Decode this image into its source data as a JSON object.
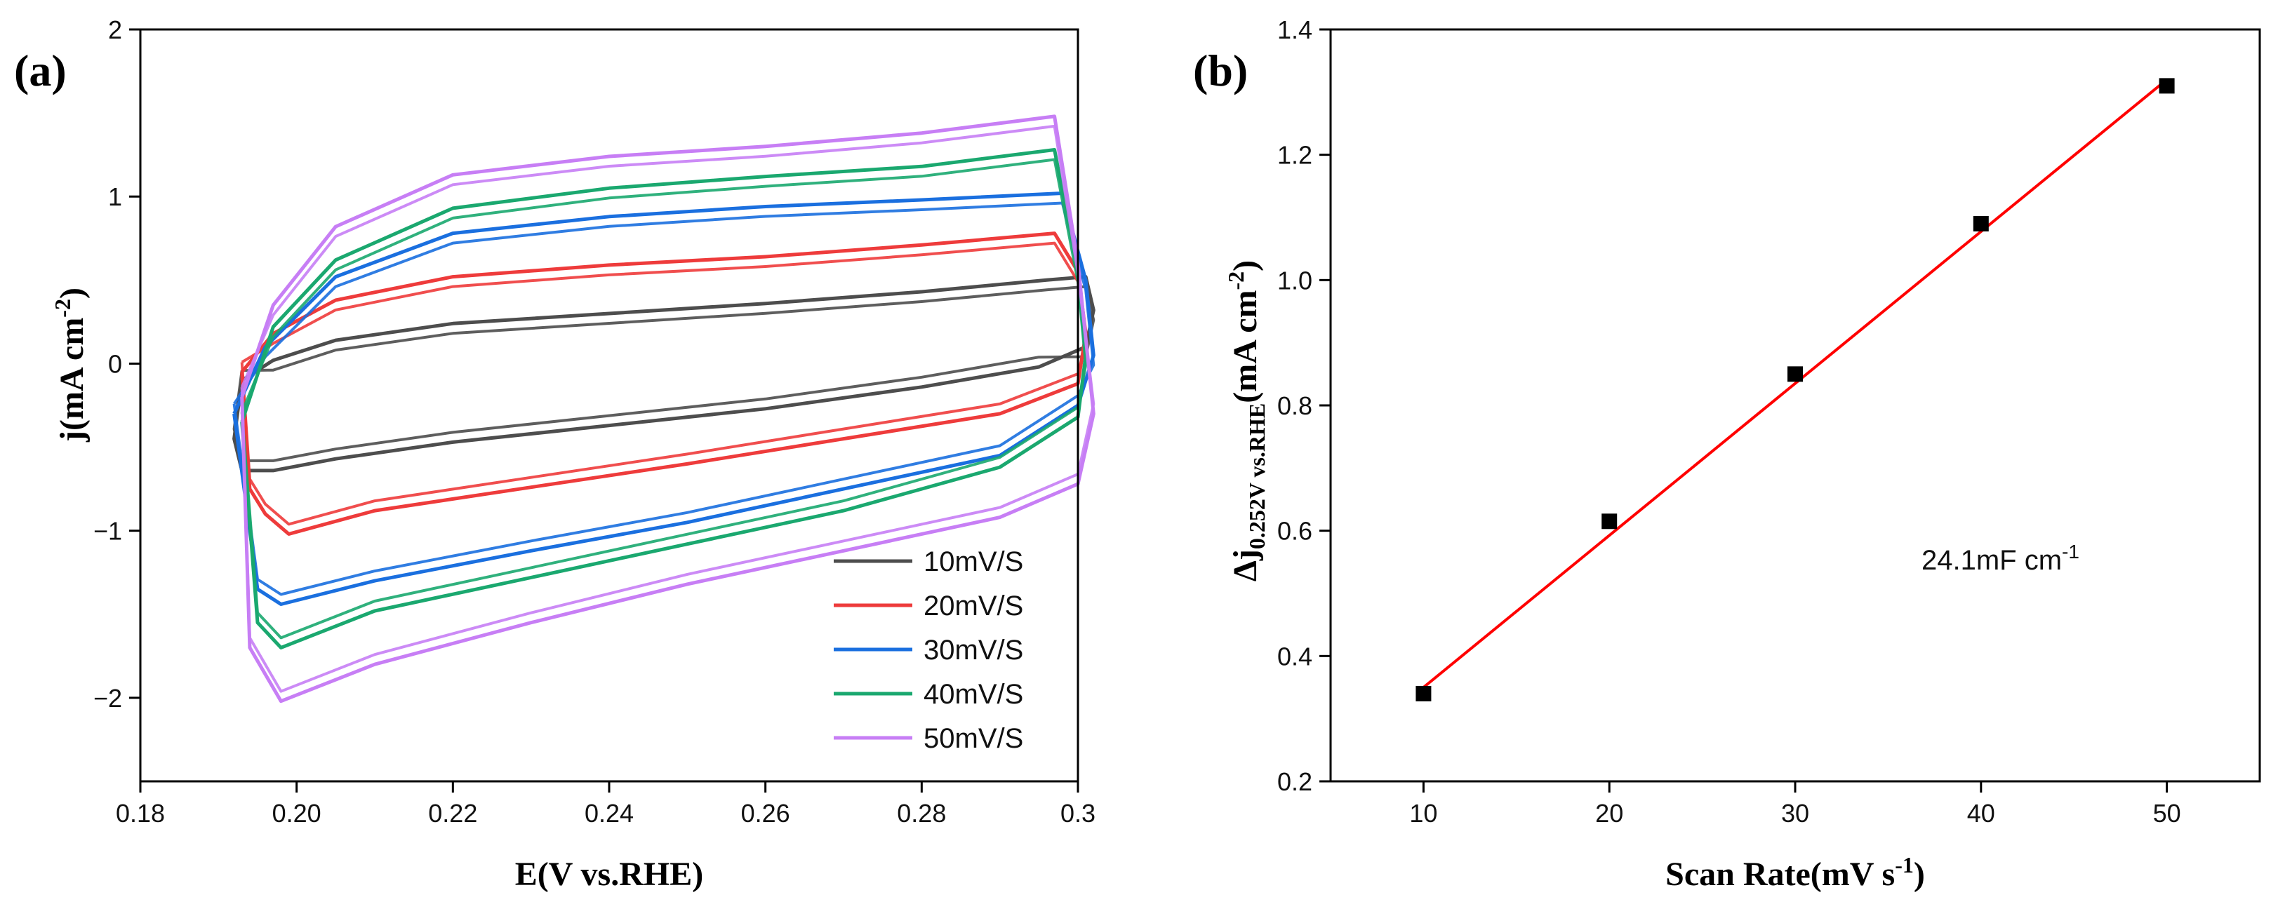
{
  "figure": {
    "panels": [
      {
        "label": "(a)",
        "xlabel": "E(V vs.RHE)",
        "ylabel": {
          "main": "j(mA cm",
          "sup": "-2",
          "close": ")"
        }
      },
      {
        "label": "(b)",
        "xlabel": {
          "main": "Scan Rate(mV s",
          "sup": "-1",
          "close": ")"
        },
        "ylabel": {
          "delta": "Δj",
          "sub": "0.252V vs.RHE",
          "main": "(mA cm",
          "sup": "-2",
          "close": ")"
        },
        "annotation": {
          "main": "24.1mF cm",
          "sup": "-1"
        }
      }
    ]
  },
  "chart_data": [
    {
      "type": "line",
      "title": "",
      "xlabel": "E(V vs.RHE)",
      "ylabel": "j(mA cm-2)",
      "xlim": [
        0.18,
        0.3
      ],
      "ylim": [
        -2.5,
        2
      ],
      "xticks": [
        0.18,
        0.2,
        0.22,
        0.24,
        0.26,
        0.28,
        0.3
      ],
      "xtick_labels": [
        "0.18",
        "0.20",
        "0.22",
        "0.24",
        "0.26",
        "0.28",
        "0.3"
      ],
      "yticks": [
        -2,
        -1,
        0,
        1,
        2
      ],
      "ytick_labels": [
        "−2",
        "−1",
        "0",
        "1",
        "2"
      ],
      "legend_position": "bottom-right",
      "series": [
        {
          "name": "10mV/S",
          "color": "#4d4d4d",
          "x": [
            0.193,
            0.197,
            0.205,
            0.22,
            0.24,
            0.26,
            0.28,
            0.296,
            0.301,
            0.302,
            0.301,
            0.295,
            0.28,
            0.26,
            0.24,
            0.22,
            0.205,
            0.197,
            0.193,
            0.192,
            0.193
          ],
          "y": [
            -0.1,
            0.02,
            0.14,
            0.24,
            0.3,
            0.36,
            0.43,
            0.5,
            0.52,
            0.32,
            0.1,
            -0.02,
            -0.14,
            -0.27,
            -0.37,
            -0.47,
            -0.57,
            -0.64,
            -0.64,
            -0.45,
            -0.1
          ]
        },
        {
          "name": "20mV/S",
          "color": "#ee3b3b",
          "x": [
            0.193,
            0.197,
            0.205,
            0.22,
            0.24,
            0.26,
            0.28,
            0.297,
            0.3,
            0.301,
            0.3,
            0.29,
            0.27,
            0.25,
            0.23,
            0.21,
            0.199,
            0.196,
            0.194,
            0.193
          ],
          "y": [
            -0.05,
            0.18,
            0.38,
            0.52,
            0.59,
            0.64,
            0.71,
            0.78,
            0.55,
            0.18,
            -0.12,
            -0.3,
            -0.45,
            -0.6,
            -0.74,
            -0.88,
            -1.02,
            -0.9,
            -0.75,
            -0.05
          ]
        },
        {
          "name": "30mV/S",
          "color": "#1a6fdf",
          "x": [
            0.192,
            0.196,
            0.205,
            0.22,
            0.24,
            0.26,
            0.28,
            0.298,
            0.301,
            0.302,
            0.3,
            0.29,
            0.27,
            0.25,
            0.23,
            0.21,
            0.198,
            0.195,
            0.192
          ],
          "y": [
            -0.3,
            0.1,
            0.52,
            0.78,
            0.88,
            0.94,
            0.98,
            1.02,
            0.5,
            0.05,
            -0.25,
            -0.55,
            -0.75,
            -0.95,
            -1.12,
            -1.3,
            -1.44,
            -1.35,
            -0.3
          ]
        },
        {
          "name": "40mV/S",
          "color": "#1aa86f",
          "x": [
            0.193,
            0.197,
            0.205,
            0.22,
            0.24,
            0.26,
            0.28,
            0.297,
            0.3,
            0.301,
            0.3,
            0.29,
            0.27,
            0.25,
            0.23,
            0.21,
            0.198,
            0.195,
            0.193
          ],
          "y": [
            -0.35,
            0.22,
            0.62,
            0.93,
            1.05,
            1.12,
            1.18,
            1.28,
            0.55,
            0.05,
            -0.32,
            -0.62,
            -0.88,
            -1.08,
            -1.28,
            -1.48,
            -1.7,
            -1.55,
            -0.35
          ]
        },
        {
          "name": "50mV/S",
          "color": "#c77ef5",
          "x": [
            0.193,
            0.197,
            0.205,
            0.22,
            0.24,
            0.26,
            0.28,
            0.297,
            0.3,
            0.302,
            0.3,
            0.29,
            0.27,
            0.25,
            0.23,
            0.21,
            0.198,
            0.194,
            0.193
          ],
          "y": [
            -0.2,
            0.35,
            0.82,
            1.13,
            1.24,
            1.3,
            1.38,
            1.48,
            0.6,
            -0.3,
            -0.72,
            -0.92,
            -1.12,
            -1.32,
            -1.55,
            -1.8,
            -2.02,
            -1.7,
            -0.2
          ]
        }
      ]
    },
    {
      "type": "scatter",
      "title": "",
      "xlabel": "Scan Rate(mV s-1)",
      "ylabel": "Δj0.252V vs.RHE(mA cm-2)",
      "xlim": [
        5,
        55
      ],
      "ylim": [
        0.2,
        1.4
      ],
      "xticks": [
        10,
        20,
        30,
        40,
        50
      ],
      "xtick_labels": [
        "10",
        "20",
        "30",
        "40",
        "50"
      ],
      "yticks": [
        0.2,
        0.4,
        0.6,
        0.8,
        1.0,
        1.2,
        1.4
      ],
      "ytick_labels": [
        "0.2",
        "0.4",
        "0.6",
        "0.8",
        "1.0",
        "1.2",
        "1.4"
      ],
      "series": [
        {
          "name": "data",
          "marker": "square",
          "color": "#000000",
          "x": [
            10,
            20,
            30,
            40,
            50
          ],
          "y": [
            0.34,
            0.615,
            0.85,
            1.09,
            1.31
          ]
        },
        {
          "name": "linear fit",
          "type": "line",
          "color": "#ff0000",
          "x": [
            10,
            50
          ],
          "y": [
            0.35,
            1.32
          ]
        }
      ]
    }
  ]
}
